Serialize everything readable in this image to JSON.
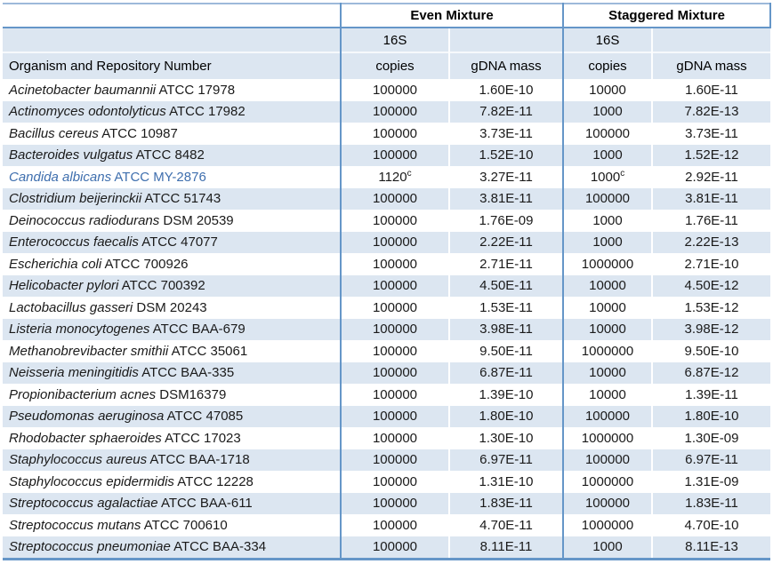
{
  "table": {
    "colors": {
      "stripe": "#dce6f1",
      "border": "#6596c8",
      "border_light": "#9db9da",
      "highlight_text": "#3f6fae"
    },
    "headers": {
      "organism": "Organism and Repository Number",
      "even_group": "Even Mixture",
      "staggered_group": "Staggered Mixture",
      "sub_16s": "16S",
      "sub_copies": "copies",
      "sub_gdna": "gDNA mass"
    },
    "rows": [
      {
        "organism_italic": "Acinetobacter baumannii",
        "organism_plain": "ATCC 17978",
        "even_copies": "100000",
        "even_gdna": "1.60E-10",
        "stag_copies": "10000",
        "stag_gdna": "1.60E-11"
      },
      {
        "organism_italic": "Actinomyces odontolyticus",
        "organism_plain": "ATCC 17982",
        "even_copies": "100000",
        "even_gdna": "7.82E-11",
        "stag_copies": "1000",
        "stag_gdna": "7.82E-13"
      },
      {
        "organism_italic": "Bacillus cereus",
        "organism_plain": "ATCC 10987",
        "even_copies": "100000",
        "even_gdna": "3.73E-11",
        "stag_copies": "100000",
        "stag_gdna": "3.73E-11"
      },
      {
        "organism_italic": "Bacteroides vulgatus",
        "organism_plain": "ATCC 8482",
        "even_copies": "100000",
        "even_gdna": "1.52E-10",
        "stag_copies": "1000",
        "stag_gdna": "1.52E-12"
      },
      {
        "organism_italic": "Candida albicans",
        "organism_plain": "ATCC MY-2876",
        "highlight": true,
        "even_copies": "1120",
        "even_sup": "c",
        "even_gdna": "3.27E-11",
        "stag_copies": "1000",
        "stag_sup": "c",
        "stag_gdna": "2.92E-11"
      },
      {
        "organism_italic": "Clostridium beijerinckii",
        "organism_plain": "ATCC 51743",
        "even_copies": "100000",
        "even_gdna": "3.81E-11",
        "stag_copies": "100000",
        "stag_gdna": "3.81E-11"
      },
      {
        "organism_italic": "Deinococcus radiodurans",
        "organism_plain": "DSM 20539",
        "even_copies": "100000",
        "even_gdna": "1.76E-09",
        "stag_copies": "1000",
        "stag_gdna": "1.76E-11"
      },
      {
        "organism_italic": "Enterococcus faecalis",
        "organism_plain": "ATCC 47077",
        "even_copies": "100000",
        "even_gdna": "2.22E-11",
        "stag_copies": "1000",
        "stag_gdna": "2.22E-13"
      },
      {
        "organism_italic": "Escherichia coli",
        "organism_plain": "ATCC 700926",
        "even_copies": "100000",
        "even_gdna": "2.71E-11",
        "stag_copies": "1000000",
        "stag_gdna": "2.71E-10"
      },
      {
        "organism_italic": "Helicobacter pylori",
        "organism_plain": "ATCC 700392",
        "even_copies": "100000",
        "even_gdna": "4.50E-11",
        "stag_copies": "10000",
        "stag_gdna": "4.50E-12"
      },
      {
        "organism_italic": "Lactobacillus gasseri",
        "organism_plain": "DSM 20243",
        "even_copies": "100000",
        "even_gdna": "1.53E-11",
        "stag_copies": "10000",
        "stag_gdna": "1.53E-12"
      },
      {
        "organism_italic": "Listeria monocytogenes",
        "organism_plain": "ATCC BAA-679",
        "even_copies": "100000",
        "even_gdna": "3.98E-11",
        "stag_copies": "10000",
        "stag_gdna": "3.98E-12"
      },
      {
        "organism_italic": "Methanobrevibacter smithii",
        "organism_plain": "ATCC 35061",
        "even_copies": "100000",
        "even_gdna": "9.50E-11",
        "stag_copies": "1000000",
        "stag_gdna": "9.50E-10"
      },
      {
        "organism_italic": "Neisseria meningitidis",
        "organism_plain": "ATCC BAA-335",
        "even_copies": "100000",
        "even_gdna": "6.87E-11",
        "stag_copies": "10000",
        "stag_gdna": "6.87E-12"
      },
      {
        "organism_italic": "Propionibacterium acnes",
        "organism_plain": "DSM16379",
        "even_copies": "100000",
        "even_gdna": "1.39E-10",
        "stag_copies": "10000",
        "stag_gdna": "1.39E-11"
      },
      {
        "organism_italic": "Pseudomonas aeruginosa",
        "organism_plain": "ATCC 47085",
        "even_copies": "100000",
        "even_gdna": "1.80E-10",
        "stag_copies": "100000",
        "stag_gdna": "1.80E-10"
      },
      {
        "organism_italic": "Rhodobacter sphaeroides",
        "organism_plain": "ATCC 17023",
        "even_copies": "100000",
        "even_gdna": "1.30E-10",
        "stag_copies": "1000000",
        "stag_gdna": "1.30E-09"
      },
      {
        "organism_italic": "Staphylococcus aureus",
        "organism_plain": "ATCC BAA-1718",
        "even_copies": "100000",
        "even_gdna": "6.97E-11",
        "stag_copies": "100000",
        "stag_gdna": "6.97E-11"
      },
      {
        "organism_italic": "Staphylococcus epidermidis",
        "organism_plain": "ATCC 12228",
        "even_copies": "100000",
        "even_gdna": "1.31E-10",
        "stag_copies": "1000000",
        "stag_gdna": "1.31E-09"
      },
      {
        "organism_italic": "Streptococcus agalactiae",
        "organism_plain": "ATCC BAA-611",
        "even_copies": "100000",
        "even_gdna": "1.83E-11",
        "stag_copies": "100000",
        "stag_gdna": "1.83E-11"
      },
      {
        "organism_italic": "Streptococcus mutans",
        "organism_plain": "ATCC 700610",
        "even_copies": "100000",
        "even_gdna": "4.70E-11",
        "stag_copies": "1000000",
        "stag_gdna": "4.70E-10"
      },
      {
        "organism_italic": "Streptococcus pneumoniae",
        "organism_plain": "ATCC BAA-334",
        "even_copies": "100000",
        "even_gdna": "8.11E-11",
        "stag_copies": "1000",
        "stag_gdna": "8.11E-13"
      }
    ]
  }
}
